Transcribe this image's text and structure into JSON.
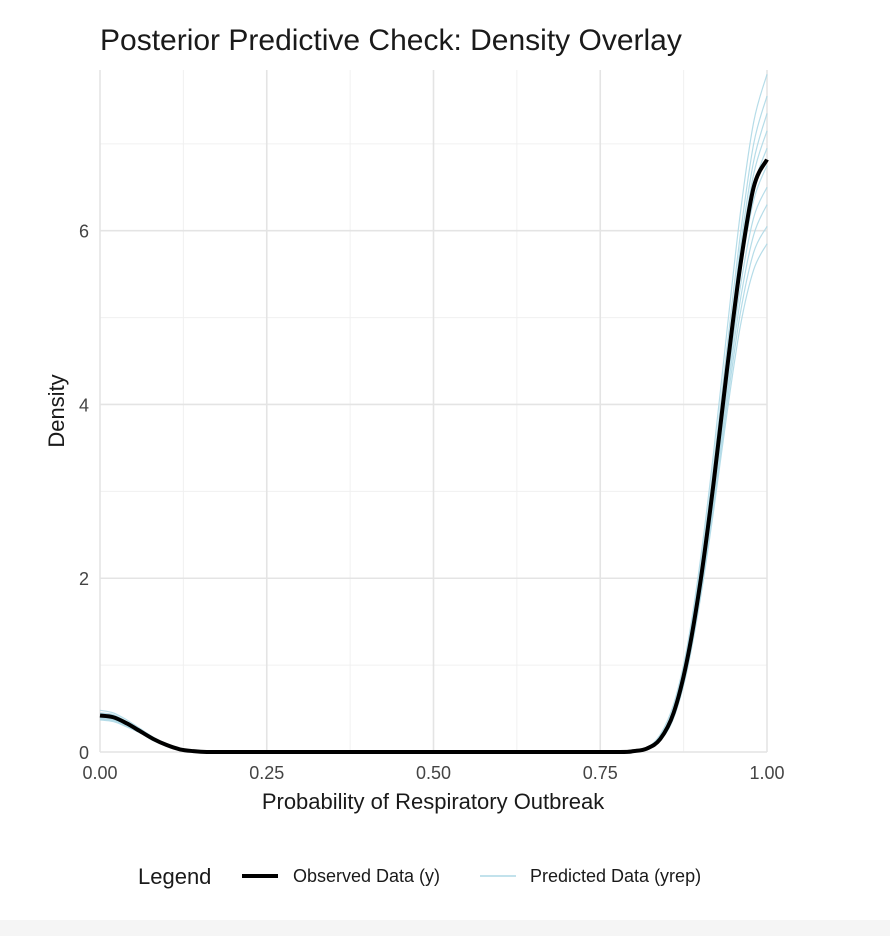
{
  "chart_data": {
    "type": "line",
    "title": "Posterior Predictive Check: Density Overlay",
    "xlabel": "Probability of Respiratory Outbreak",
    "ylabel": "Density",
    "xlim": [
      0,
      1
    ],
    "ylim": [
      0,
      7.85
    ],
    "x_ticks": [
      0,
      0.25,
      0.5,
      0.75,
      1.0
    ],
    "x_tick_labels": [
      "0.00",
      "0.25",
      "0.50",
      "0.75",
      "1.00"
    ],
    "y_ticks": [
      0,
      2,
      4,
      6
    ],
    "y_tick_labels": [
      "0",
      "2",
      "4",
      "6"
    ],
    "grid": true,
    "legend": {
      "title": "Legend",
      "position": "bottom",
      "entries": [
        {
          "label": "Observed Data (y)",
          "color": "#000000"
        },
        {
          "label": "Predicted Data (yrep)",
          "color": "#add8e6"
        }
      ]
    },
    "series": [
      {
        "name": "Observed Data (y)",
        "color": "#000000",
        "x": [
          0,
          0.02,
          0.04,
          0.06,
          0.08,
          0.1,
          0.12,
          0.14,
          0.16,
          0.2,
          0.3,
          0.5,
          0.7,
          0.78,
          0.8,
          0.82,
          0.84,
          0.86,
          0.88,
          0.9,
          0.92,
          0.94,
          0.96,
          0.98,
          1.0
        ],
        "y": [
          0.42,
          0.4,
          0.33,
          0.24,
          0.15,
          0.08,
          0.03,
          0.01,
          0.0,
          0.0,
          0.0,
          0.0,
          0.0,
          0.0,
          0.01,
          0.04,
          0.15,
          0.45,
          1.05,
          1.95,
          3.1,
          4.4,
          5.6,
          6.5,
          6.82
        ]
      },
      {
        "name": "Predicted Data (yrep)",
        "color": "#add8e6",
        "x": [
          0,
          0.02,
          0.04,
          0.06,
          0.08,
          0.1,
          0.12,
          0.14,
          0.16,
          0.2,
          0.3,
          0.5,
          0.7,
          0.78,
          0.8,
          0.82,
          0.84,
          0.86,
          0.88,
          0.9,
          0.92,
          0.94,
          0.96,
          0.98,
          1.0
        ],
        "y_draws": [
          [
            0.48,
            0.45,
            0.37,
            0.27,
            0.17,
            0.09,
            0.04,
            0.01,
            0.0,
            0.0,
            0.0,
            0.0,
            0.0,
            0.0,
            0.01,
            0.05,
            0.2,
            0.55,
            1.2,
            2.2,
            3.45,
            4.85,
            6.2,
            7.25,
            7.8
          ],
          [
            0.45,
            0.43,
            0.35,
            0.26,
            0.16,
            0.09,
            0.03,
            0.01,
            0.0,
            0.0,
            0.0,
            0.0,
            0.0,
            0.0,
            0.01,
            0.05,
            0.18,
            0.5,
            1.15,
            2.1,
            3.3,
            4.65,
            5.95,
            7.0,
            7.55
          ],
          [
            0.44,
            0.42,
            0.34,
            0.25,
            0.16,
            0.08,
            0.03,
            0.01,
            0.0,
            0.0,
            0.0,
            0.0,
            0.0,
            0.0,
            0.01,
            0.04,
            0.17,
            0.48,
            1.1,
            2.05,
            3.2,
            4.5,
            5.8,
            6.8,
            7.35
          ],
          [
            0.43,
            0.41,
            0.34,
            0.25,
            0.15,
            0.08,
            0.03,
            0.01,
            0.0,
            0.0,
            0.0,
            0.0,
            0.0,
            0.0,
            0.01,
            0.04,
            0.16,
            0.47,
            1.08,
            2.0,
            3.15,
            4.45,
            5.7,
            6.65,
            7.15
          ],
          [
            0.42,
            0.4,
            0.33,
            0.24,
            0.15,
            0.08,
            0.03,
            0.01,
            0.0,
            0.0,
            0.0,
            0.0,
            0.0,
            0.0,
            0.01,
            0.04,
            0.16,
            0.46,
            1.06,
            1.97,
            3.1,
            4.38,
            5.6,
            6.5,
            6.95
          ],
          [
            0.41,
            0.39,
            0.32,
            0.24,
            0.15,
            0.08,
            0.03,
            0.01,
            0.0,
            0.0,
            0.0,
            0.0,
            0.0,
            0.0,
            0.01,
            0.04,
            0.15,
            0.44,
            1.03,
            1.92,
            3.05,
            4.3,
            5.5,
            6.35,
            6.75
          ],
          [
            0.4,
            0.38,
            0.32,
            0.23,
            0.14,
            0.07,
            0.03,
            0.01,
            0.0,
            0.0,
            0.0,
            0.0,
            0.0,
            0.0,
            0.01,
            0.04,
            0.15,
            0.43,
            1.0,
            1.88,
            2.98,
            4.2,
            5.35,
            6.15,
            6.5
          ],
          [
            0.39,
            0.37,
            0.31,
            0.23,
            0.14,
            0.07,
            0.03,
            0.01,
            0.0,
            0.0,
            0.0,
            0.0,
            0.0,
            0.0,
            0.01,
            0.04,
            0.14,
            0.42,
            0.98,
            1.84,
            2.92,
            4.1,
            5.2,
            5.95,
            6.3
          ],
          [
            0.38,
            0.36,
            0.3,
            0.22,
            0.14,
            0.07,
            0.03,
            0.01,
            0.0,
            0.0,
            0.0,
            0.0,
            0.0,
            0.0,
            0.01,
            0.03,
            0.13,
            0.4,
            0.95,
            1.8,
            2.85,
            4.0,
            5.05,
            5.75,
            6.05
          ],
          [
            0.37,
            0.35,
            0.29,
            0.22,
            0.13,
            0.07,
            0.03,
            0.01,
            0.0,
            0.0,
            0.0,
            0.0,
            0.0,
            0.0,
            0.01,
            0.03,
            0.13,
            0.39,
            0.93,
            1.76,
            2.78,
            3.9,
            4.9,
            5.55,
            5.85
          ]
        ]
      }
    ]
  }
}
